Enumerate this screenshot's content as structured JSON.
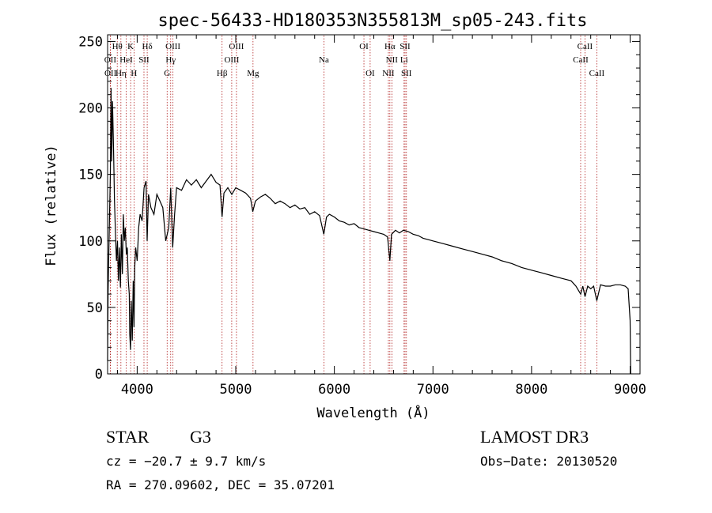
{
  "chart_data": {
    "type": "line",
    "title": "spec-56433-HD180353N355813M_sp05-243.fits",
    "xlabel": "Wavelength (Å)",
    "ylabel": "Flux (relative)",
    "xlim": [
      3700,
      9100
    ],
    "ylim": [
      0,
      255
    ],
    "xticks": [
      4000,
      5000,
      6000,
      7000,
      8000,
      9000
    ],
    "yticks": [
      0,
      50,
      100,
      150,
      200,
      250
    ],
    "xtick_labels": [
      "4000",
      "5000",
      "6000",
      "7000",
      "8000",
      "9000"
    ],
    "ytick_labels": [
      "0",
      "50",
      "100",
      "150",
      "200",
      "250"
    ],
    "grid": false,
    "series": [
      {
        "name": "spectrum",
        "x": [
          3700,
          3705,
          3712,
          3720,
          3728,
          3735,
          3742,
          3750,
          3760,
          3770,
          3780,
          3790,
          3800,
          3810,
          3820,
          3830,
          3840,
          3850,
          3860,
          3870,
          3880,
          3890,
          3900,
          3910,
          3920,
          3925,
          3933,
          3940,
          3950,
          3960,
          3968,
          3975,
          3985,
          4000,
          4015,
          4030,
          4050,
          4070,
          4090,
          4101,
          4115,
          4140,
          4170,
          4200,
          4230,
          4260,
          4290,
          4320,
          4340,
          4360,
          4380,
          4400,
          4450,
          4500,
          4550,
          4600,
          4650,
          4700,
          4750,
          4800,
          4840,
          4861,
          4880,
          4920,
          4960,
          5000,
          5050,
          5100,
          5150,
          5172,
          5200,
          5250,
          5300,
          5350,
          5400,
          5450,
          5500,
          5550,
          5600,
          5650,
          5700,
          5750,
          5800,
          5850,
          5893,
          5920,
          5950,
          6000,
          6050,
          6100,
          6150,
          6200,
          6250,
          6300,
          6350,
          6400,
          6450,
          6500,
          6540,
          6563,
          6580,
          6620,
          6660,
          6700,
          6750,
          6800,
          6850,
          6900,
          6950,
          7000,
          7100,
          7200,
          7300,
          7400,
          7500,
          7600,
          7700,
          7800,
          7900,
          8000,
          8100,
          8200,
          8300,
          8400,
          8450,
          8498,
          8520,
          8542,
          8570,
          8600,
          8630,
          8662,
          8700,
          8750,
          8800,
          8850,
          8900,
          8950,
          8980,
          9000,
          9005
        ],
        "y": [
          10,
          60,
          90,
          120,
          150,
          215,
          160,
          205,
          170,
          130,
          105,
          85,
          100,
          70,
          95,
          65,
          105,
          75,
          120,
          100,
          110,
          90,
          95,
          70,
          60,
          30,
          18,
          55,
          25,
          70,
          35,
          80,
          95,
          85,
          110,
          120,
          115,
          140,
          145,
          100,
          135,
          125,
          120,
          135,
          130,
          125,
          100,
          110,
          140,
          95,
          120,
          140,
          138,
          146,
          142,
          146,
          140,
          145,
          150,
          144,
          142,
          118,
          136,
          140,
          135,
          140,
          138,
          136,
          132,
          122,
          130,
          133,
          135,
          132,
          128,
          130,
          128,
          125,
          127,
          124,
          125,
          120,
          122,
          119,
          105,
          118,
          120,
          118,
          115,
          114,
          112,
          113,
          110,
          109,
          108,
          107,
          106,
          105,
          103,
          85,
          105,
          108,
          106,
          108,
          107,
          105,
          104,
          102,
          101,
          100,
          98,
          96,
          94,
          92,
          90,
          88,
          85,
          83,
          80,
          78,
          76,
          74,
          72,
          70,
          66,
          60,
          66,
          58,
          66,
          64,
          66,
          55,
          67,
          66,
          66,
          67,
          67,
          66,
          64,
          40,
          0
        ]
      }
    ],
    "line_markers": [
      {
        "label": "OII",
        "x": 3727,
        "row": 2
      },
      {
        "label": "OII",
        "x": 3729,
        "row": 3
      },
      {
        "label": "Hθ",
        "x": 3798,
        "row": 1
      },
      {
        "label": "Hη",
        "x": 3835,
        "row": 3
      },
      {
        "label": "HeI",
        "x": 3889,
        "row": 2
      },
      {
        "label": "K",
        "x": 3934,
        "row": 1
      },
      {
        "label": "H",
        "x": 3968,
        "row": 3
      },
      {
        "label": "SII",
        "x": 4069,
        "row": 2
      },
      {
        "label": "Hδ",
        "x": 4102,
        "row": 1
      },
      {
        "label": "G",
        "x": 4304,
        "row": 3
      },
      {
        "label": "Hγ",
        "x": 4340,
        "row": 2
      },
      {
        "label": "OIII",
        "x": 4363,
        "row": 1
      },
      {
        "label": "Hβ",
        "x": 4861,
        "row": 3
      },
      {
        "label": "OIII",
        "x": 4959,
        "row": 2
      },
      {
        "label": "OIII",
        "x": 5007,
        "row": 1
      },
      {
        "label": "Mg",
        "x": 5175,
        "row": 3
      },
      {
        "label": "Na",
        "x": 5894,
        "row": 2
      },
      {
        "label": "OI",
        "x": 6300,
        "row": 1
      },
      {
        "label": "OI",
        "x": 6363,
        "row": 3
      },
      {
        "label": "NII",
        "x": 6548,
        "row": 3
      },
      {
        "label": "Hα",
        "x": 6563,
        "row": 1
      },
      {
        "label": "NII",
        "x": 6583,
        "row": 2
      },
      {
        "label": "Li",
        "x": 6707,
        "row": 2
      },
      {
        "label": "SII",
        "x": 6717,
        "row": 1
      },
      {
        "label": "SII",
        "x": 6731,
        "row": 3
      },
      {
        "label": "CaII",
        "x": 8498,
        "row": 2
      },
      {
        "label": "CaII",
        "x": 8542,
        "row": 1
      },
      {
        "label": "CaII",
        "x": 8662,
        "row": 3
      }
    ]
  },
  "info": {
    "object_class": "STAR",
    "subclass": "G3",
    "survey": "LAMOST DR3",
    "cz": "cz = −20.7 ± 9.7 km/s",
    "obs_date": "Obs−Date: 20130520",
    "coords": "RA = 270.09602, DEC =  35.07201"
  },
  "colors": {
    "marker_line": "#b22222",
    "spectrum": "#000000"
  }
}
